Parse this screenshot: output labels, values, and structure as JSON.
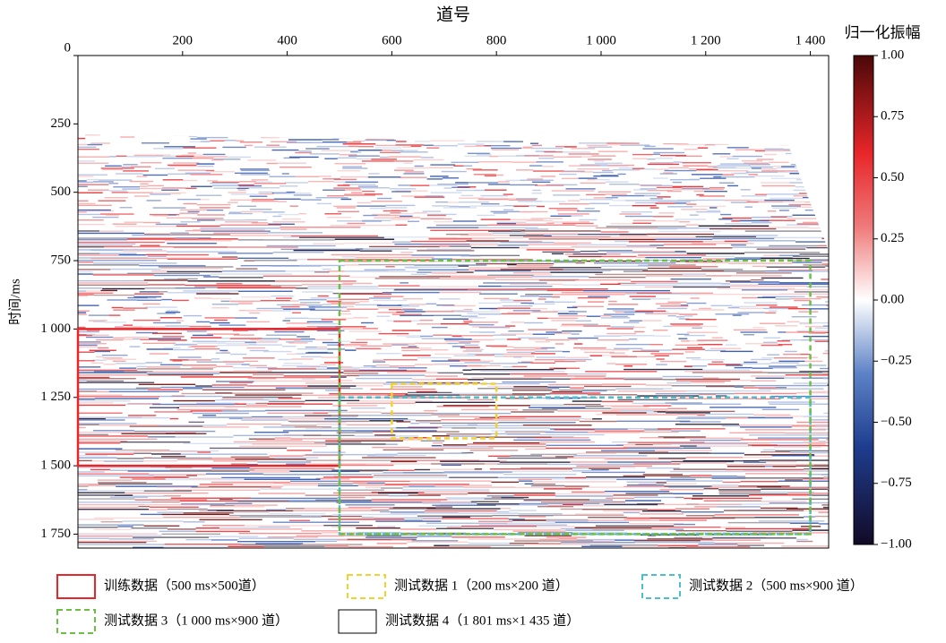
{
  "chart_data": {
    "type": "heatmap",
    "xlabel": "道号",
    "ylabel": "时间/ms",
    "xlim": [
      0,
      1435
    ],
    "ylim": [
      0,
      1801
    ],
    "y_inverted": true,
    "xticks": [
      200,
      400,
      600,
      800,
      {
        "value": 1000,
        "label": "1 000"
      },
      {
        "value": 1200,
        "label": "1 200"
      },
      {
        "value": 1400,
        "label": "1 400"
      }
    ],
    "yticks": [
      0,
      250,
      500,
      750,
      {
        "value": 1000,
        "label": "1 000"
      },
      {
        "value": 1250,
        "label": "1 250"
      },
      {
        "value": 1500,
        "label": "1 500"
      },
      {
        "value": 1750,
        "label": "1 750"
      }
    ],
    "colorbar": {
      "label": "归一化振幅",
      "lim": [
        -1,
        1
      ],
      "ticks": [
        {
          "value": 1,
          "label": "1.00"
        },
        {
          "value": 0.75,
          "label": "0.75"
        },
        {
          "value": 0.5,
          "label": "0.50"
        },
        {
          "value": 0.25,
          "label": "0.25"
        },
        {
          "value": 0,
          "label": "0.00"
        },
        {
          "value": -0.25,
          "label": "−0.25"
        },
        {
          "value": -0.5,
          "label": "−0.50"
        },
        {
          "value": -0.75,
          "label": "−0.75"
        },
        {
          "value": -1,
          "label": "−1.00"
        }
      ]
    },
    "regions": [
      {
        "name": "训练数据（500 ms×500道）",
        "color": "#e8262a",
        "dashed": false,
        "x": [
          0,
          500
        ],
        "y": [
          1000,
          1500
        ]
      },
      {
        "name": "测试数据 1（200 ms×200 道）",
        "color": "#f2d22e",
        "dashed": true,
        "x": [
          600,
          800
        ],
        "y": [
          1200,
          1400
        ]
      },
      {
        "name": "测试数据 2（500 ms×900 道）",
        "color": "#4bbfcf",
        "dashed": true,
        "x": [
          500,
          1400
        ],
        "y": [
          1250,
          1750
        ]
      },
      {
        "name": "测试数据 3（1 000 ms×900 道）",
        "color": "#6cbf45",
        "dashed": true,
        "x": [
          500,
          1400
        ],
        "y": [
          750,
          1750
        ]
      },
      {
        "name": "测试数据 4（1 801 ms×1 435 道）",
        "color": "#000000",
        "dashed": false,
        "x": [
          0,
          1435
        ],
        "y": [
          0,
          1801
        ]
      }
    ]
  }
}
